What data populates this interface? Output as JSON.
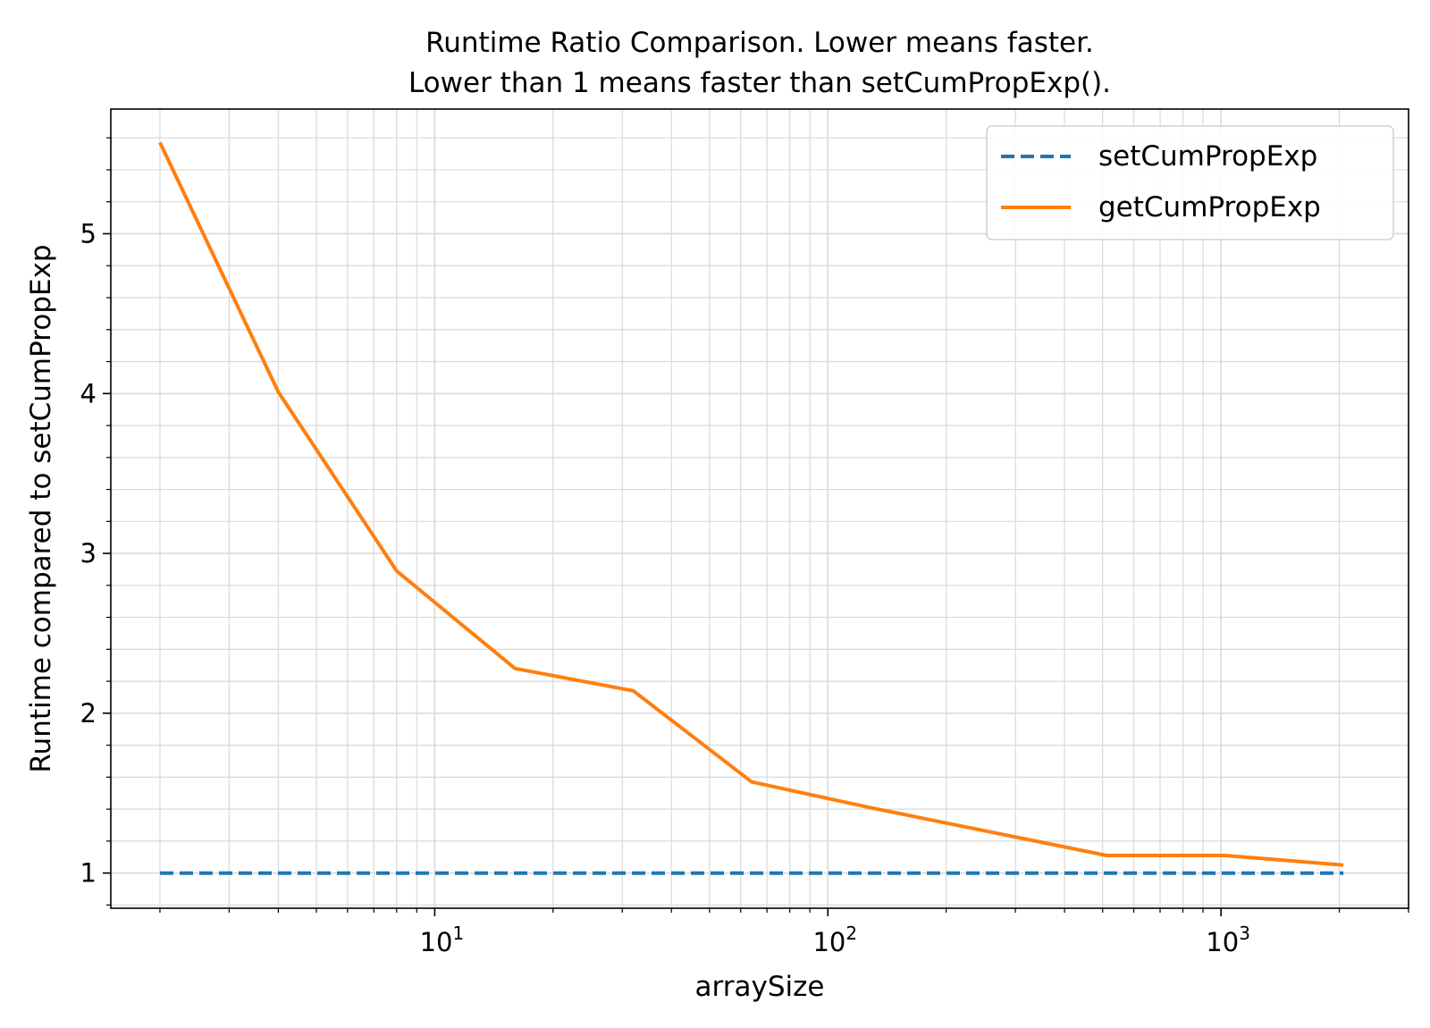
{
  "chart_data": {
    "type": "line",
    "title_lines": [
      "Runtime Ratio Comparison. Lower means faster.",
      "Lower than 1 means faster than setCumPropExp()."
    ],
    "xlabel": "arraySize",
    "ylabel": "Runtime compared to setCumPropExp",
    "xscale": "log",
    "xlim": [
      1.5,
      3000
    ],
    "ylim": [
      0.78,
      5.78
    ],
    "grid": "major and minor",
    "legend_position": "top-right",
    "x_ticks": [
      {
        "value": 10,
        "base": "10",
        "exp": "1"
      },
      {
        "value": 100,
        "base": "10",
        "exp": "2"
      },
      {
        "value": 1000,
        "base": "10",
        "exp": "3"
      }
    ],
    "y_ticks": [
      {
        "value": 1,
        "label": "1"
      },
      {
        "value": 2,
        "label": "2"
      },
      {
        "value": 3,
        "label": "3"
      },
      {
        "value": 4,
        "label": "4"
      },
      {
        "value": 5,
        "label": "5"
      }
    ],
    "x": [
      2,
      4,
      8,
      16,
      32,
      64,
      128,
      256,
      512,
      1024,
      2048
    ],
    "series": [
      {
        "name": "setCumPropExp",
        "style": "dashed",
        "color": "#1f77b4",
        "values": [
          1,
          1,
          1,
          1,
          1,
          1,
          1,
          1,
          1,
          1,
          1
        ]
      },
      {
        "name": "getCumPropExp",
        "style": "solid",
        "color": "#ff7f0e",
        "values": [
          5.57,
          4.01,
          2.89,
          2.28,
          2.14,
          1.57,
          1.41,
          1.26,
          1.11,
          1.11,
          1.05
        ]
      }
    ]
  }
}
